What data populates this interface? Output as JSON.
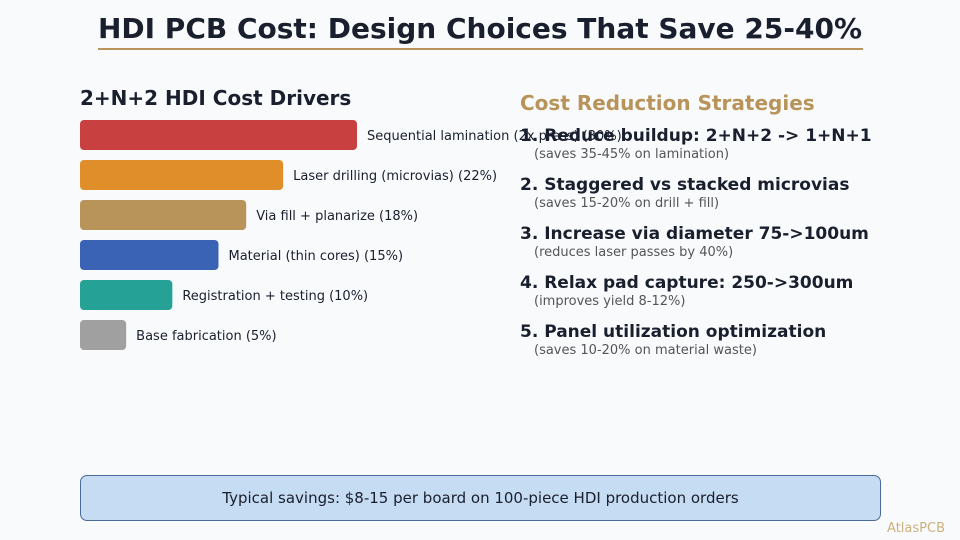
{
  "title": "HDI PCB Cost: Design Choices That Save 25-40%",
  "colors": {
    "accent": "#b8945a",
    "callout_bg": "#c5dcf3"
  },
  "chart_data": {
    "type": "bar",
    "orientation": "horizontal",
    "title": "2+N+2 HDI Cost Drivers",
    "categories": [
      "Sequential lamination (2x press) (30%)",
      "Laser drilling (microvias) (22%)",
      "Via fill + planarize (18%)",
      "Material (thin cores) (15%)",
      "Registration + testing (10%)",
      "Base fabrication (5%)"
    ],
    "values": [
      30,
      22,
      18,
      15,
      10,
      5
    ],
    "colors": [
      "#c94040",
      "#e08e2a",
      "#b8945a",
      "#3a62b5",
      "#26a196",
      "#a0a0a0"
    ],
    "unit": "%"
  },
  "strategies": {
    "title": "Cost Reduction Strategies",
    "items": [
      {
        "head": "1. Reduce buildup: 2+N+2 -> 1+N+1",
        "sub": "(saves 35-45% on lamination)"
      },
      {
        "head": "2. Staggered vs stacked microvias",
        "sub": "(saves 15-20% on drill + fill)"
      },
      {
        "head": "3. Increase via diameter 75->100um",
        "sub": "(reduces laser passes by 40%)"
      },
      {
        "head": "4. Relax pad capture: 250->300um",
        "sub": "(improves yield 8-12%)"
      },
      {
        "head": "5. Panel utilization optimization",
        "sub": "(saves 10-20% on material waste)"
      }
    ]
  },
  "callout": "Typical savings: $8-15 per board on 100-piece HDI production orders",
  "watermark": "AtlasPCB"
}
